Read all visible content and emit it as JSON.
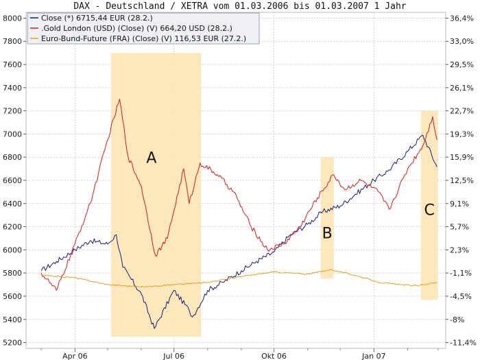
{
  "title": "DAX - Deutschland / XETRA vom 01.03.2006 bis 01.03.2007 1 Jahr",
  "legend": [
    {
      "label": "Close (*) 6715,44 EUR (28.2.)",
      "color": "#1a1a6e"
    },
    {
      "label": ".Gold London (USD) (Close) (V) 664,20 USD (28.2.)",
      "color": "#cc1f1f"
    },
    {
      "label": "Euro-Bund-Future (FRA) (Close) (V) 116,53 EUR (27.2.)",
      "color": "#e0a020"
    }
  ],
  "annotations": [
    "A",
    "B",
    "C"
  ],
  "chart_data": {
    "type": "line",
    "title": "DAX - Deutschland / XETRA vom 01.03.2006 bis 01.03.2007 1 Jahr",
    "x_tick_labels": [
      "Apr 06",
      "Jul 06",
      "Okt 06",
      "Jan 07"
    ],
    "left_axis": {
      "ylim": [
        5150,
        8050
      ],
      "tick_labels": [
        "8000",
        "7800",
        "7600",
        "7400",
        "7200",
        "7000",
        "6800",
        "6600",
        "6400",
        "6200",
        "6000",
        "5800",
        "5600",
        "5400",
        "5200"
      ]
    },
    "right_axis": {
      "tick_labels": [
        "36,4%",
        "33,0%",
        "29,5%",
        "26,1%",
        "22,7%",
        "19,3%",
        "15,9%",
        "12,5%",
        "9,1%",
        "5,7%",
        "2,3%",
        "-1,1%",
        "-4,5%",
        "-8%",
        "-11,4%"
      ]
    },
    "grid": true,
    "legend_position": "top-left",
    "series": [
      {
        "name": "Close (*) 6715,44 EUR (28.2.)",
        "color": "#1a1a6e",
        "x": [
          "2006-03-01",
          "2006-03-15",
          "2006-04-01",
          "2006-04-15",
          "2006-05-01",
          "2006-05-09",
          "2006-05-15",
          "2006-06-01",
          "2006-06-13",
          "2006-07-01",
          "2006-07-15",
          "2006-07-18",
          "2006-08-01",
          "2006-08-15",
          "2006-09-01",
          "2006-09-15",
          "2006-10-01",
          "2006-10-15",
          "2006-11-01",
          "2006-11-15",
          "2006-12-01",
          "2006-12-15",
          "2007-01-01",
          "2007-01-15",
          "2007-02-01",
          "2007-02-15",
          "2007-02-28"
        ],
        "y": [
          5820,
          5900,
          6000,
          6080,
          6050,
          6130,
          5850,
          5620,
          5320,
          5650,
          5480,
          5420,
          5650,
          5720,
          5820,
          5900,
          5980,
          6120,
          6220,
          6330,
          6380,
          6480,
          6600,
          6690,
          6850,
          6990,
          6715
        ]
      },
      {
        "name": ".Gold London (USD) (Close) (V) 664,20 USD (28.2.)",
        "color": "#cc1f1f",
        "x": [
          "2006-03-01",
          "2006-03-15",
          "2006-04-01",
          "2006-04-15",
          "2006-05-01",
          "2006-05-12",
          "2006-05-20",
          "2006-06-01",
          "2006-06-14",
          "2006-06-25",
          "2006-07-10",
          "2006-07-15",
          "2006-07-25",
          "2006-08-10",
          "2006-08-25",
          "2006-09-10",
          "2006-09-25",
          "2006-10-10",
          "2006-10-25",
          "2006-11-10",
          "2006-11-25",
          "2006-12-05",
          "2006-12-20",
          "2007-01-05",
          "2007-01-15",
          "2007-02-01",
          "2007-02-15",
          "2007-02-24",
          "2007-02-28"
        ],
        "y": [
          5800,
          5650,
          6050,
          6400,
          6950,
          7300,
          6800,
          6550,
          5950,
          6100,
          6700,
          6400,
          6750,
          6650,
          6500,
          6200,
          6000,
          6050,
          6200,
          6450,
          6650,
          6520,
          6600,
          6500,
          6350,
          6700,
          6900,
          7150,
          6950
        ]
      },
      {
        "name": "Euro-Bund-Future (FRA) (Close) (V) 116,53 EUR (27.2.)",
        "color": "#e0a020",
        "x": [
          "2006-03-01",
          "2006-04-01",
          "2006-05-01",
          "2006-06-01",
          "2006-07-01",
          "2006-08-01",
          "2006-09-01",
          "2006-10-01",
          "2006-11-01",
          "2006-11-22",
          "2006-12-15",
          "2007-01-05",
          "2007-01-25",
          "2007-02-10",
          "2007-02-28"
        ],
        "y": [
          5780,
          5760,
          5700,
          5680,
          5700,
          5720,
          5770,
          5810,
          5790,
          5830,
          5780,
          5720,
          5700,
          5690,
          5720
        ]
      }
    ],
    "highlight_regions": [
      {
        "label": "A",
        "x_start": "2006-05-04",
        "x_end": "2006-07-26",
        "y_top": 7700,
        "y_bottom": 5250
      },
      {
        "label": "B",
        "x_start": "2006-11-13",
        "x_end": "2006-11-25",
        "y_top": 6800,
        "y_bottom": 5750
      },
      {
        "label": "C",
        "x_start": "2007-02-13",
        "x_end": "2007-03-01",
        "y_top": 7200,
        "y_bottom": 5570
      }
    ]
  }
}
